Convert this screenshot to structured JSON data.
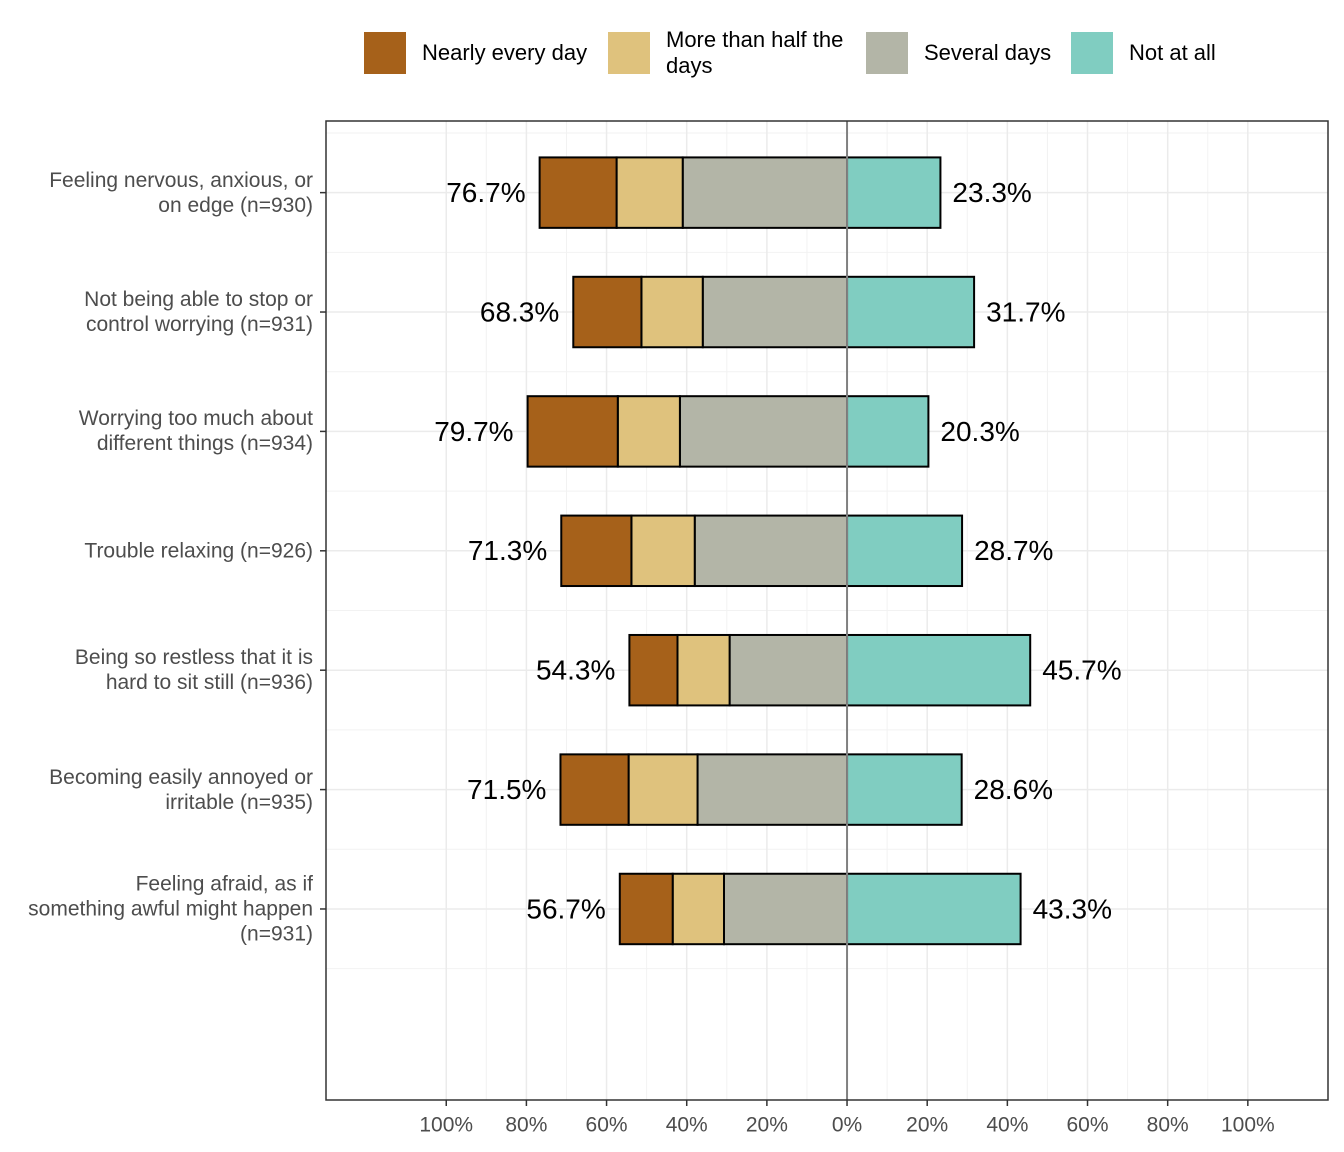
{
  "chart_data": {
    "type": "diverging_bar",
    "categories": [
      "Feeling nervous, anxious, or\non edge (n=930)",
      "Not being able to stop or\ncontrol worrying (n=931)",
      "Worrying too much about\ndifferent things (n=934)",
      "Trouble relaxing (n=926)",
      "Being so restless that it is\nhard to sit still (n=936)",
      "Becoming easily annoyed or\nirritable (n=935)",
      "Feeling afraid, as if\nsomething awful might happen\n(n=931)"
    ],
    "series": [
      {
        "name": "Nearly every day",
        "color": "#a6611a",
        "values": [
          -19.2,
          -17.0,
          -22.5,
          -17.5,
          -12.0,
          -17.0,
          -13.2
        ]
      },
      {
        "name": "More than half the days",
        "color": "#dfc27d",
        "values": [
          -16.5,
          -15.3,
          -15.5,
          -15.8,
          -13.0,
          -17.2,
          -12.8
        ]
      },
      {
        "name": "Several days",
        "color": "#b3b5a7",
        "values": [
          -41.0,
          -36.0,
          -41.7,
          -38.0,
          -29.3,
          -37.3,
          -30.7
        ]
      },
      {
        "name": "Not at all",
        "color": "#80cdc1",
        "values": [
          23.3,
          31.7,
          20.3,
          28.7,
          45.7,
          28.6,
          43.3
        ],
        "value_labels": [
          "23.3%",
          "31.7%",
          "20.3%",
          "28.7%",
          "45.7%",
          "28.6%",
          "43.3%"
        ]
      }
    ],
    "left_totals": [
      "76.7%",
      "68.3%",
      "79.7%",
      "71.3%",
      "54.3%",
      "71.5%",
      "56.7%"
    ],
    "xlim": [
      -130,
      120
    ],
    "xticks": [
      {
        "value": -100,
        "label": "100%"
      },
      {
        "value": -80,
        "label": "80%"
      },
      {
        "value": -60,
        "label": "60%"
      },
      {
        "value": -40,
        "label": "40%"
      },
      {
        "value": -20,
        "label": "20%"
      },
      {
        "value": 0,
        "label": "0%"
      },
      {
        "value": 20,
        "label": "20%"
      },
      {
        "value": 40,
        "label": "40%"
      },
      {
        "value": 60,
        "label": "60%"
      },
      {
        "value": 80,
        "label": "80%"
      },
      {
        "value": 100,
        "label": "100%"
      }
    ],
    "grid": true
  }
}
